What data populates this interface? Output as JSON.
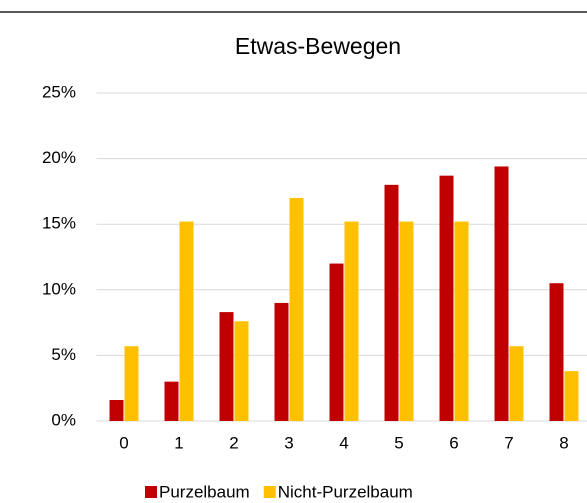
{
  "chart_data": {
    "type": "bar",
    "title": "Etwas-Bewegen",
    "categories": [
      "0",
      "1",
      "2",
      "3",
      "4",
      "5",
      "6",
      "7",
      "8"
    ],
    "series": [
      {
        "name": "Purzelbaum",
        "color": "#c00000",
        "values": [
          1.6,
          3.0,
          8.3,
          9.0,
          12.0,
          18.0,
          18.7,
          19.4,
          10.5
        ]
      },
      {
        "name": "Nicht-Purzelbaum",
        "color": "#ffc000",
        "values": [
          5.7,
          15.2,
          7.6,
          17.0,
          15.2,
          15.2,
          15.2,
          5.7,
          3.8
        ]
      }
    ],
    "ylim": [
      0,
      25
    ],
    "yticks": [
      {
        "value": 0,
        "label": "0%"
      },
      {
        "value": 5,
        "label": "5%"
      },
      {
        "value": 10,
        "label": "10%"
      },
      {
        "value": 15,
        "label": "15%"
      },
      {
        "value": 20,
        "label": "20%"
      },
      {
        "value": 25,
        "label": "25%"
      }
    ],
    "grid": true,
    "legend": "bottom"
  }
}
